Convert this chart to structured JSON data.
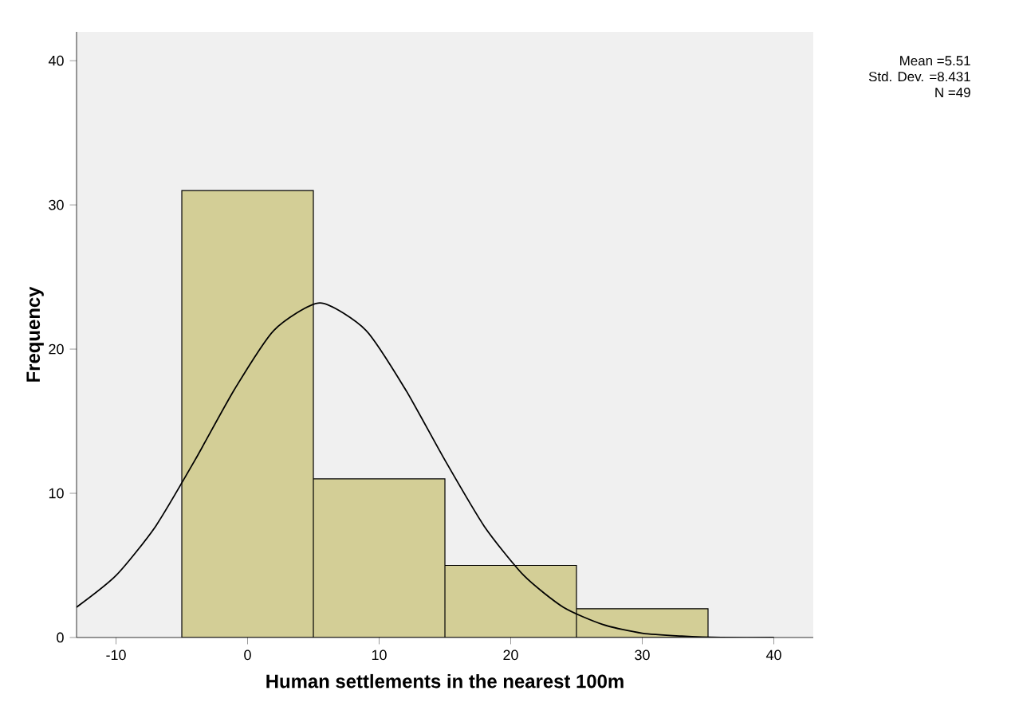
{
  "chart_data": {
    "type": "histogram",
    "xlabel": "Human settlements in the nearest 100m",
    "ylabel": "Frequency",
    "series": [
      {
        "bins": [
          -5,
          5,
          15,
          25,
          35
        ],
        "values": [
          31,
          11,
          5,
          2
        ],
        "color": "#d3ce96"
      },
      {
        "type": "line",
        "color": "#000000",
        "x": [
          -13,
          -10,
          -7,
          -4,
          -1,
          2,
          5.5,
          9,
          12,
          15,
          18,
          21,
          24,
          27,
          30,
          33,
          36,
          40
        ],
        "values": [
          2.1,
          4.3,
          7.7,
          12.3,
          17.2,
          21.3,
          23.2,
          21.3,
          17.2,
          12.3,
          7.7,
          4.3,
          2.1,
          0.9,
          0.3,
          0.1,
          0.0,
          0.0
        ]
      }
    ],
    "xlim": [
      -13,
      43
    ],
    "ylim": [
      0,
      42
    ],
    "xticks": [
      -10,
      0,
      10,
      20,
      30,
      40
    ],
    "yticks": [
      0,
      10,
      20,
      30,
      40
    ],
    "annotations": [
      "Mean =5.51",
      "Std. Dev. =8.431",
      "N =49"
    ]
  }
}
